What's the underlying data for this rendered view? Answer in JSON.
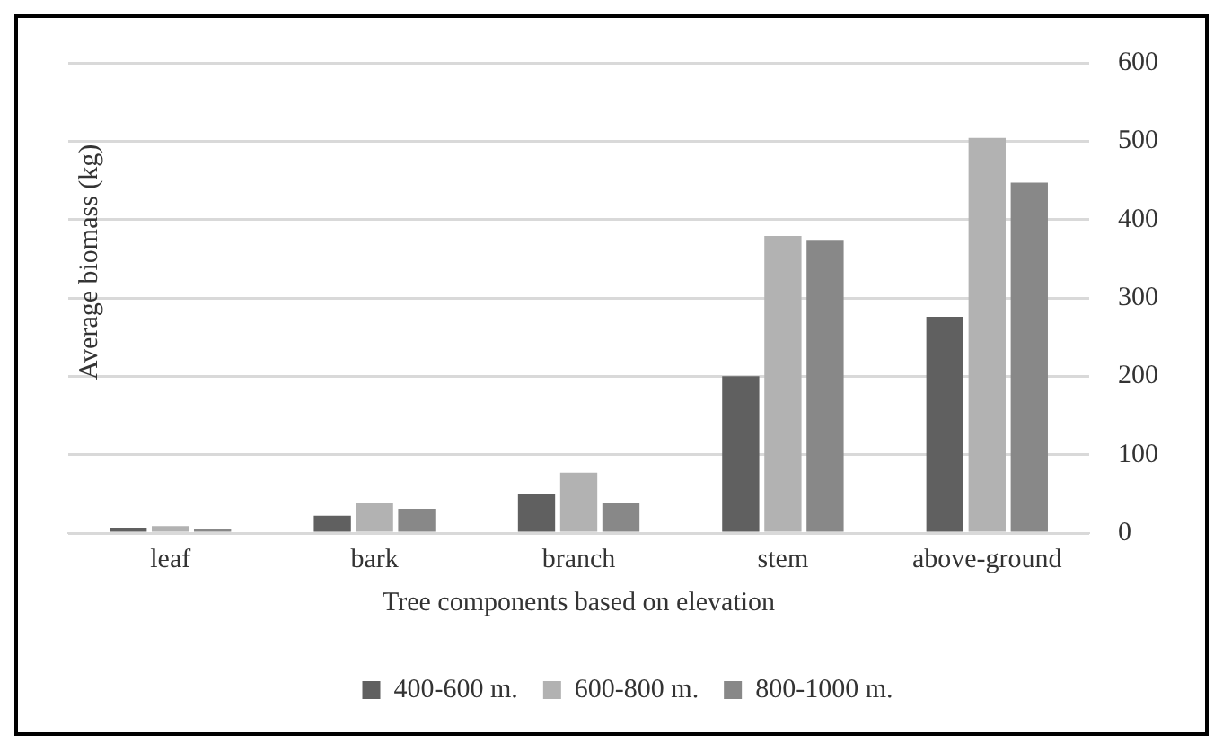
{
  "chart_data": {
    "type": "bar",
    "xlabel": "Tree components based on elevation",
    "ylabel": "Average biomass (kg)",
    "categories": [
      "leaf",
      "bark",
      "branch",
      "stem",
      "above-ground"
    ],
    "series": [
      {
        "name": "400-600 m.",
        "color": "#606060",
        "values": [
          7,
          22,
          50,
          200,
          276
        ]
      },
      {
        "name": "600-800 m.",
        "color": "#b2b2b2",
        "values": [
          9,
          39,
          77,
          379,
          504
        ]
      },
      {
        "name": "800-1000 m.",
        "color": "#888888",
        "values": [
          5,
          31,
          39,
          373,
          447
        ]
      }
    ],
    "ylim": [
      0,
      600
    ],
    "yticks": [
      0,
      100,
      200,
      300,
      400,
      500,
      600
    ],
    "grid": "y",
    "legend": "bottom"
  }
}
